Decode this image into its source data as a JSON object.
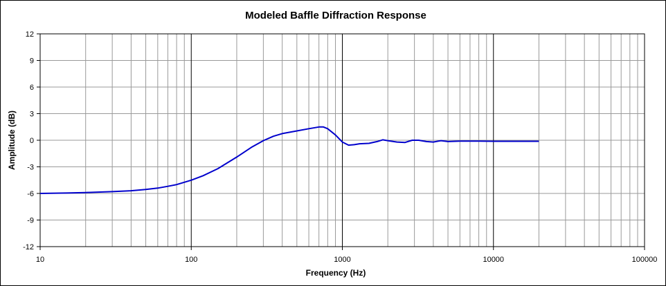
{
  "chart_data": {
    "type": "line",
    "title": "Modeled Baffle Diffraction Response",
    "xlabel": "Frequency (Hz)",
    "ylabel": "Amplitude (dB)",
    "x_scale": "log",
    "xlim": [
      10,
      100000
    ],
    "ylim": [
      -12,
      12
    ],
    "x_ticks": [
      10,
      100,
      1000,
      10000,
      100000
    ],
    "x_tick_labels": [
      "10",
      "100",
      "1000",
      "10000",
      "100000"
    ],
    "y_ticks": [
      12,
      9,
      6,
      3,
      0,
      -3,
      -6,
      -9,
      -12
    ],
    "y_tick_labels": [
      "12",
      "9",
      "6",
      "3",
      "0",
      "-3",
      "-6",
      "-9",
      "-12"
    ],
    "grid": true,
    "legend": "none",
    "series": [
      {
        "color": "#0000cc",
        "points": [
          [
            10,
            -6.0
          ],
          [
            15,
            -5.95
          ],
          [
            20,
            -5.9
          ],
          [
            30,
            -5.8
          ],
          [
            40,
            -5.7
          ],
          [
            50,
            -5.55
          ],
          [
            60,
            -5.4
          ],
          [
            70,
            -5.2
          ],
          [
            80,
            -5.0
          ],
          [
            100,
            -4.5
          ],
          [
            120,
            -4.0
          ],
          [
            150,
            -3.2
          ],
          [
            200,
            -1.9
          ],
          [
            250,
            -0.8
          ],
          [
            300,
            -0.05
          ],
          [
            350,
            0.45
          ],
          [
            400,
            0.75
          ],
          [
            500,
            1.05
          ],
          [
            600,
            1.3
          ],
          [
            700,
            1.5
          ],
          [
            750,
            1.5
          ],
          [
            800,
            1.3
          ],
          [
            900,
            0.6
          ],
          [
            1000,
            -0.2
          ],
          [
            1100,
            -0.55
          ],
          [
            1200,
            -0.5
          ],
          [
            1300,
            -0.4
          ],
          [
            1500,
            -0.35
          ],
          [
            1700,
            -0.15
          ],
          [
            1850,
            0.05
          ],
          [
            2000,
            -0.05
          ],
          [
            2300,
            -0.2
          ],
          [
            2600,
            -0.25
          ],
          [
            2900,
            0.0
          ],
          [
            3200,
            0.0
          ],
          [
            3600,
            -0.15
          ],
          [
            4000,
            -0.2
          ],
          [
            4500,
            -0.05
          ],
          [
            5000,
            -0.15
          ],
          [
            6000,
            -0.1
          ],
          [
            8000,
            -0.1
          ],
          [
            10000,
            -0.12
          ],
          [
            15000,
            -0.12
          ],
          [
            20000,
            -0.12
          ]
        ]
      }
    ]
  }
}
